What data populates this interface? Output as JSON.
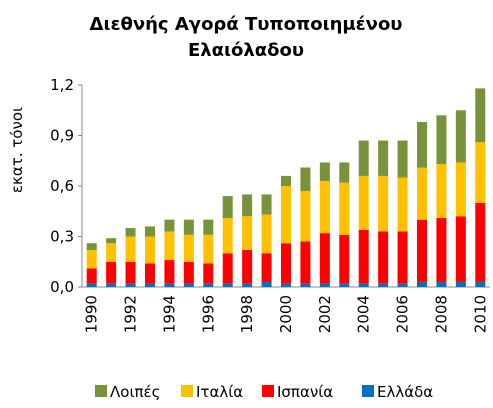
{
  "chart_data": {
    "type": "stacked_bar",
    "title": [
      "Διεθνής Αγορά Τυποποιημένου",
      "Ελαιόλαδου"
    ],
    "y_label": "εκατ. τόνοι",
    "categories": [
      "1990",
      null,
      "1992",
      null,
      "1994",
      null,
      "1996",
      null,
      "1998",
      null,
      "2000",
      null,
      "2002",
      null,
      "2004",
      null,
      "2006",
      null,
      "2008",
      null,
      "2010"
    ],
    "series": [
      {
        "name": "Ελλάδα",
        "color": "#0070c0",
        "values": [
          0.02,
          0.02,
          0.02,
          0.02,
          0.02,
          0.02,
          0.02,
          0.02,
          0.02,
          0.03,
          0.02,
          0.02,
          0.02,
          0.02,
          0.02,
          0.02,
          0.02,
          0.03,
          0.03,
          0.03,
          0.03
        ]
      },
      {
        "name": "Ισπανία",
        "color": "#ff0000",
        "values": [
          0.09,
          0.13,
          0.13,
          0.12,
          0.14,
          0.13,
          0.12,
          0.18,
          0.2,
          0.17,
          0.24,
          0.25,
          0.3,
          0.29,
          0.32,
          0.31,
          0.31,
          0.37,
          0.38,
          0.39,
          0.47
        ]
      },
      {
        "name": "Ιταλία",
        "color": "#ffc000",
        "values": [
          0.11,
          0.11,
          0.15,
          0.16,
          0.17,
          0.16,
          0.17,
          0.21,
          0.2,
          0.23,
          0.34,
          0.3,
          0.31,
          0.31,
          0.32,
          0.33,
          0.32,
          0.31,
          0.32,
          0.32,
          0.36
        ]
      },
      {
        "name": "Λοιπές",
        "color": "#77933c",
        "values": [
          0.04,
          0.03,
          0.05,
          0.06,
          0.07,
          0.09,
          0.09,
          0.13,
          0.13,
          0.12,
          0.06,
          0.14,
          0.11,
          0.12,
          0.21,
          0.21,
          0.22,
          0.27,
          0.29,
          0.31,
          0.32
        ]
      }
    ],
    "ylim": [
      0,
      1.2
    ],
    "yticks": [
      {
        "value": 0,
        "label": "0,0"
      },
      {
        "value": 0.3,
        "label": "0,3"
      },
      {
        "value": 0.6,
        "label": "0,6"
      },
      {
        "value": 0.9,
        "label": "0,9"
      },
      {
        "value": 1.2,
        "label": "1,2"
      }
    ],
    "grid": false
  }
}
